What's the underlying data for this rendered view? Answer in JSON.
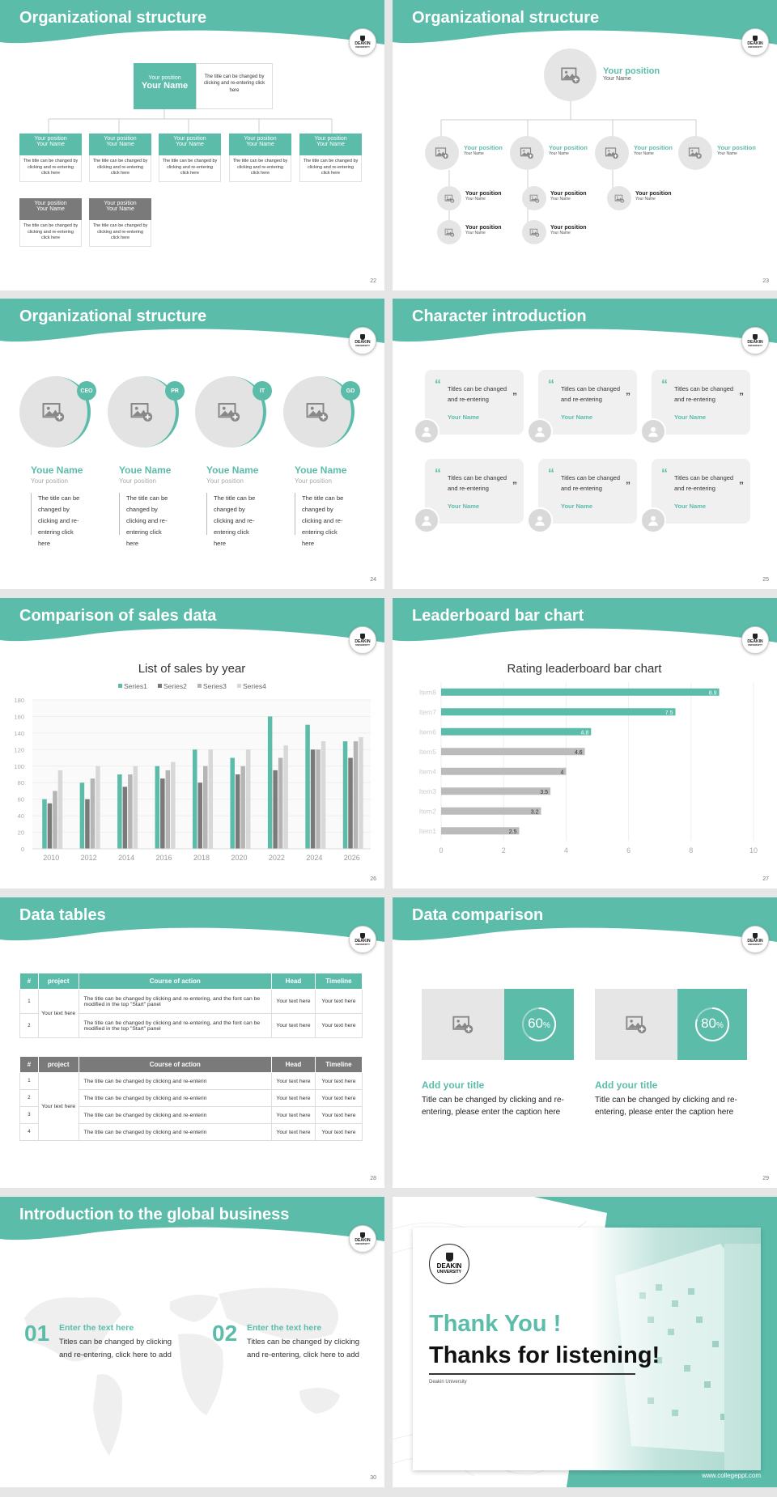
{
  "colors": {
    "accent": "#5bbcaa",
    "gray": "#7a7a7a",
    "light": "#e8e8e8"
  },
  "logo": {
    "line1": "DEAKIN",
    "line2": "UNIVERSITY"
  },
  "s22": {
    "title": "Organizational structure",
    "top_pos": "Your position",
    "top_name": "Your Name",
    "top_desc": "The title can be changed by clicking and re-entering click here",
    "pos": "Your position",
    "name": "Your Name",
    "desc": "The title can be changed by clicking and re-entering click here",
    "num": "22"
  },
  "s23": {
    "title": "Organizational structure",
    "top_pos": "Your position",
    "top_name": "Your Name",
    "pos": "Your position",
    "name": "Your Name",
    "num": "23"
  },
  "s24": {
    "title": "Organizational structure",
    "badges": [
      "CEO",
      "PR",
      "IT",
      "GD"
    ],
    "name": "Youe Name",
    "pos": "Your position",
    "desc": "The title can be changed by clicking and re-entering click here",
    "num": "24"
  },
  "s25": {
    "title": "Character introduction",
    "quote": "Titles can be changed and re-entering",
    "name": "Your Name",
    "num": "25"
  },
  "s26": {
    "title": "Comparison of sales data",
    "num": "26"
  },
  "s27": {
    "title": "Leaderboard bar chart",
    "num": "27"
  },
  "s28": {
    "title": "Data tables",
    "num": "28",
    "headers": [
      "#",
      "project",
      "Course of action",
      "Head",
      "Timeline"
    ],
    "t1": {
      "project": "Your text here",
      "rows": [
        {
          "n": "1",
          "course": "The title can be changed by clicking and re-entering, and the font can be modified in the top \"Start\" panel",
          "head": "Your text here",
          "time": "Your text here"
        },
        {
          "n": "2",
          "course": "The title can be changed by clicking and re-entering, and the font can be modified in the top \"Start\" panel",
          "head": "Your text here",
          "time": "Your text here"
        }
      ]
    },
    "t2": {
      "project": "Your text here",
      "rows": [
        {
          "n": "1",
          "course": "The title can be changed by clicking and re-enterin",
          "head": "Your text here",
          "time": "Your text here"
        },
        {
          "n": "2",
          "course": "The title can be changed by clicking and re-enterin",
          "head": "Your text here",
          "time": "Your text here"
        },
        {
          "n": "3",
          "course": "The title can be changed by clicking and re-enterin",
          "head": "Your text here",
          "time": "Your text here"
        },
        {
          "n": "4",
          "course": "The title can be changed by clicking and re-enterin",
          "head": "Your text here",
          "time": "Your text here"
        }
      ]
    }
  },
  "s29": {
    "title": "Data comparison",
    "num": "29",
    "items": [
      {
        "pct": "60",
        "unit": "%",
        "value": 0.6,
        "head": "Add your title",
        "body": "Title can be changed by clicking and re-entering, please enter the caption here"
      },
      {
        "pct": "80",
        "unit": "%",
        "value": 0.8,
        "head": "Add your title",
        "body": "Title can be changed by clicking and re-entering, please enter the caption here"
      }
    ]
  },
  "s30": {
    "title": "Introduction to the global business",
    "num": "30",
    "items": [
      {
        "n": "01",
        "head": "Enter the text here",
        "body": "Titles can be changed by clicking and re-entering, click here to add"
      },
      {
        "n": "02",
        "head": "Enter the text here",
        "body": "Titles can be changed by clicking and re-entering, click here to add"
      }
    ]
  },
  "s31": {
    "thank": "Thank You !",
    "thanks": "Thanks for listening!",
    "sub": "Deakin University",
    "url": "www.collegeppt.com"
  },
  "chart_data": [
    {
      "type": "bar",
      "title": "List of sales by year",
      "categories": [
        "2010",
        "2012",
        "2014",
        "2016",
        "2018",
        "2020",
        "2022",
        "2024",
        "2026"
      ],
      "series": [
        {
          "name": "Series1",
          "color": "#5bbcaa",
          "values": [
            60,
            80,
            90,
            100,
            120,
            110,
            160,
            150,
            130
          ]
        },
        {
          "name": "Series2",
          "color": "#7a7a7a",
          "values": [
            55,
            60,
            75,
            85,
            80,
            90,
            95,
            120,
            110
          ]
        },
        {
          "name": "Series3",
          "color": "#b5b5b5",
          "values": [
            70,
            85,
            90,
            95,
            100,
            100,
            110,
            120,
            130
          ]
        },
        {
          "name": "Series4",
          "color": "#d8d8d8",
          "values": [
            95,
            100,
            100,
            105,
            120,
            120,
            125,
            130,
            135
          ]
        }
      ],
      "ylim": [
        0,
        180
      ],
      "yticks": [
        0,
        20,
        40,
        60,
        80,
        100,
        120,
        140,
        160,
        180
      ],
      "legend": "top"
    },
    {
      "type": "bar",
      "orientation": "horizontal",
      "title": "Rating leaderboard bar chart",
      "categories": [
        "Item8",
        "Item7",
        "Item6",
        "Item5",
        "Item4",
        "Item3",
        "Item2",
        "Item1"
      ],
      "values": [
        8.9,
        7.5,
        4.8,
        4.6,
        4,
        3.5,
        3.2,
        2.5
      ],
      "xlim": [
        0,
        10
      ],
      "xticks": [
        0,
        2,
        4,
        6,
        8,
        10
      ]
    }
  ]
}
